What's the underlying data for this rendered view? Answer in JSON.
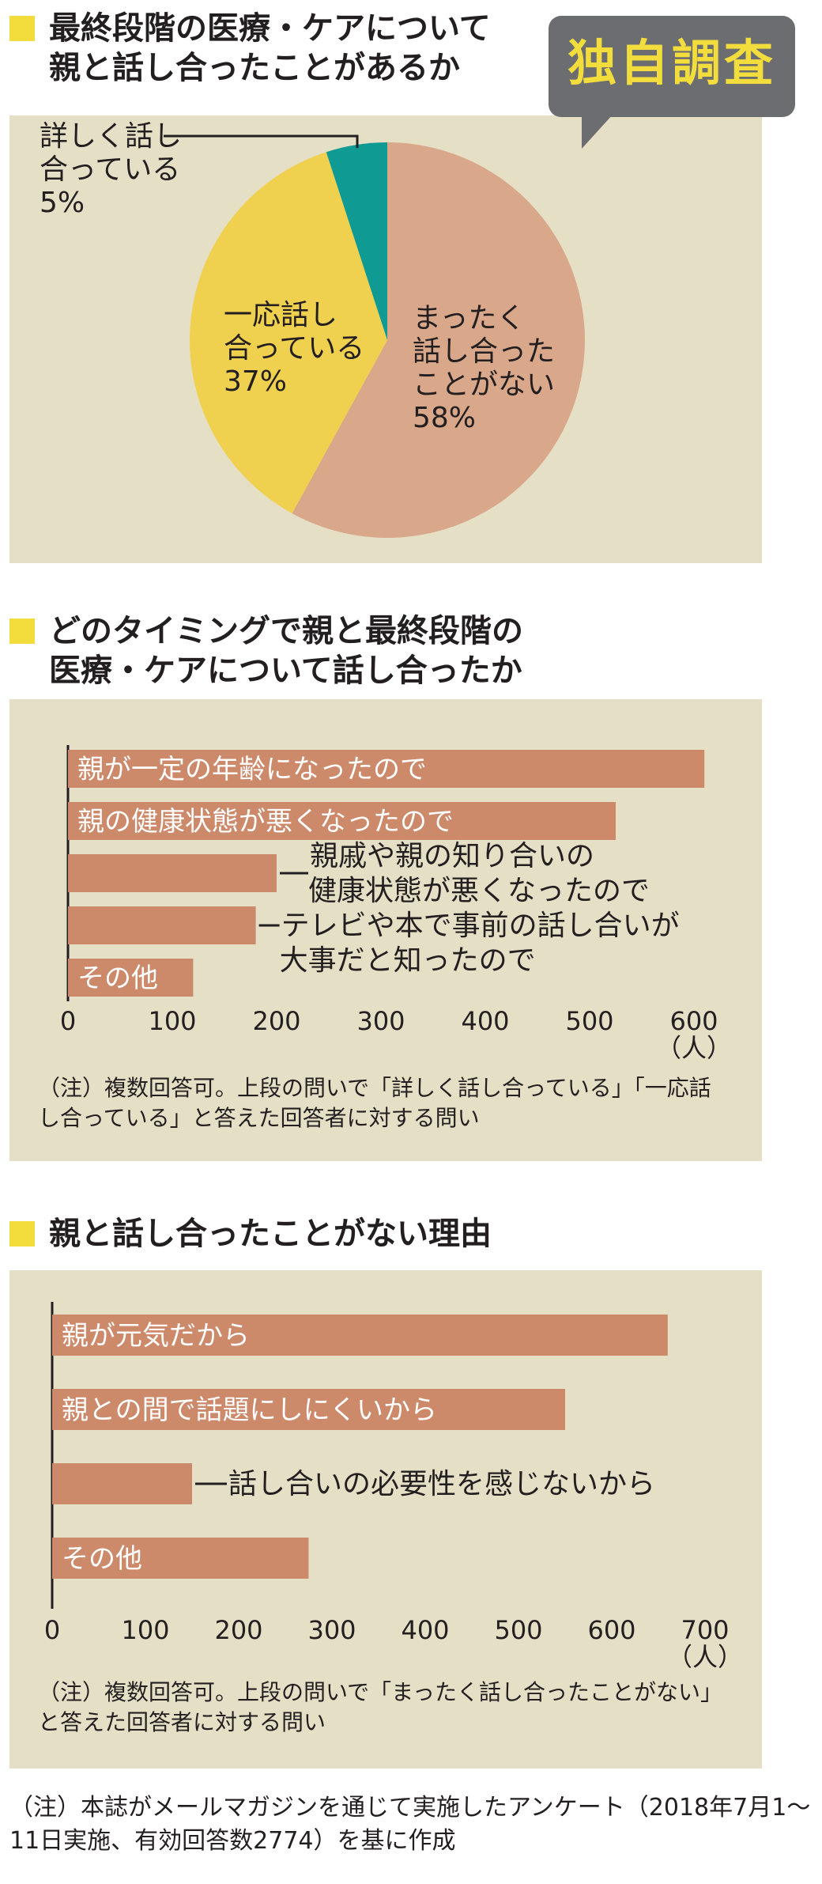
{
  "badge": "独自調査",
  "chart_data": [
    {
      "type": "pie",
      "title": [
        "最終段階の医療・ケアについて",
        "親と話し合ったことがあるか"
      ],
      "slices": [
        {
          "label": [
            "まったく",
            "話し合った",
            "ことがない"
          ],
          "pct_text": "58%",
          "value": 58,
          "color": "#d9a78a"
        },
        {
          "label": [
            "一応話し",
            "合っている"
          ],
          "pct_text": "37%",
          "value": 37,
          "color": "#f0d04f"
        },
        {
          "label": [
            "詳しく話し",
            "合っている"
          ],
          "pct_text": "5%",
          "value": 5,
          "color": "#0f9a94"
        }
      ]
    },
    {
      "type": "bar",
      "title": [
        "どのタイミングで親と最終段階の",
        "医療・ケアについて話し合ったか"
      ],
      "categories": [
        [
          "親が一定の年齢になったので"
        ],
        [
          "親の健康状態が悪くなったので"
        ],
        [
          "親戚や親の知り合いの",
          "健康状態が悪くなったので"
        ],
        [
          "テレビや本で事前の話し合いが",
          "大事だと知ったので"
        ],
        [
          "その他"
        ]
      ],
      "values": [
        610,
        525,
        200,
        180,
        120
      ],
      "xlim": [
        0,
        600
      ],
      "ticks": [
        "0",
        "100",
        "200",
        "300",
        "400",
        "500",
        "600"
      ],
      "unit": "（人）",
      "bar_color": "#cd8a6b",
      "note": [
        "（注）複数回答可。上段の問いで「詳しく話し合っている」「一応話",
        "し合っている」と答えた回答者に対する問い"
      ]
    },
    {
      "type": "bar",
      "title": [
        "親と話し合ったことがない理由"
      ],
      "categories": [
        [
          "親が元気だから"
        ],
        [
          "親との間で話題にしにくいから"
        ],
        [
          "話し合いの必要性を感じないから"
        ],
        [
          "その他"
        ]
      ],
      "values": [
        660,
        550,
        150,
        275
      ],
      "xlim": [
        0,
        700
      ],
      "ticks": [
        "0",
        "100",
        "200",
        "300",
        "400",
        "500",
        "600",
        "700"
      ],
      "unit": "（人）",
      "bar_color": "#cd8a6b",
      "note": [
        "（注）複数回答可。上段の問いで「まったく話し合ったことがない」",
        "と答えた回答者に対する問い"
      ]
    }
  ],
  "footer_note": [
    "（注）本誌がメールマガジンを通じて実施したアンケート（2018年7月1～",
    "11日実施、有効回答数2774）を基に作成"
  ]
}
